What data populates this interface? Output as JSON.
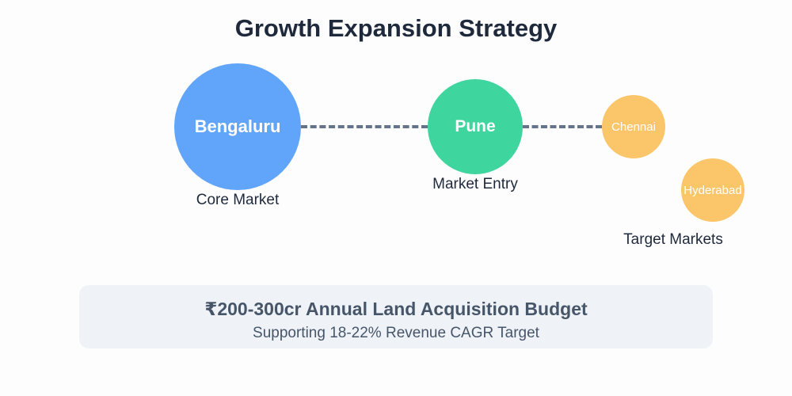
{
  "title": "Growth Expansion Strategy",
  "nodes": {
    "core": {
      "label": "Bengaluru",
      "caption": "Core Market",
      "color": "#60a5fa"
    },
    "entry": {
      "label": "Pune",
      "caption": "Market Entry",
      "color": "#34d399"
    },
    "targets": {
      "items": [
        {
          "label": "Chennai",
          "color": "#fbc56a"
        },
        {
          "label": "Hyderabad",
          "color": "#fbc56a"
        }
      ],
      "caption": "Target Markets"
    }
  },
  "budget": {
    "title": "₹200-300cr Annual Land Acquisition Budget",
    "subtitle": "Supporting 18-22% Revenue CAGR Target"
  }
}
